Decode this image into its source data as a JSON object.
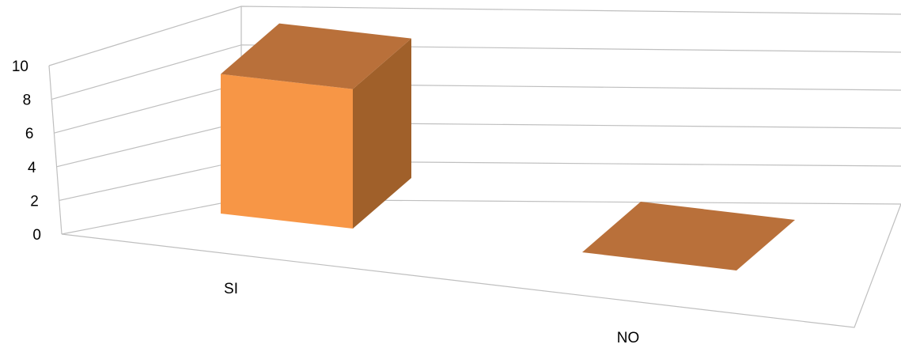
{
  "chart_data": {
    "type": "bar",
    "subtype": "3d-column",
    "categories": [
      "SI",
      "NO"
    ],
    "series": [
      {
        "values": [
          9,
          0
        ]
      }
    ],
    "ylim": [
      0,
      10
    ],
    "yticks": [
      "0",
      "2",
      "4",
      "6",
      "8",
      "10"
    ],
    "title": "",
    "xlabel": "",
    "ylabel": "",
    "grid": true,
    "legend": "none",
    "colors": {
      "front": "#f79646",
      "side": "#a0602a",
      "top": "#b9703a",
      "grid": "#bfbfbf",
      "text": "#000000"
    }
  }
}
